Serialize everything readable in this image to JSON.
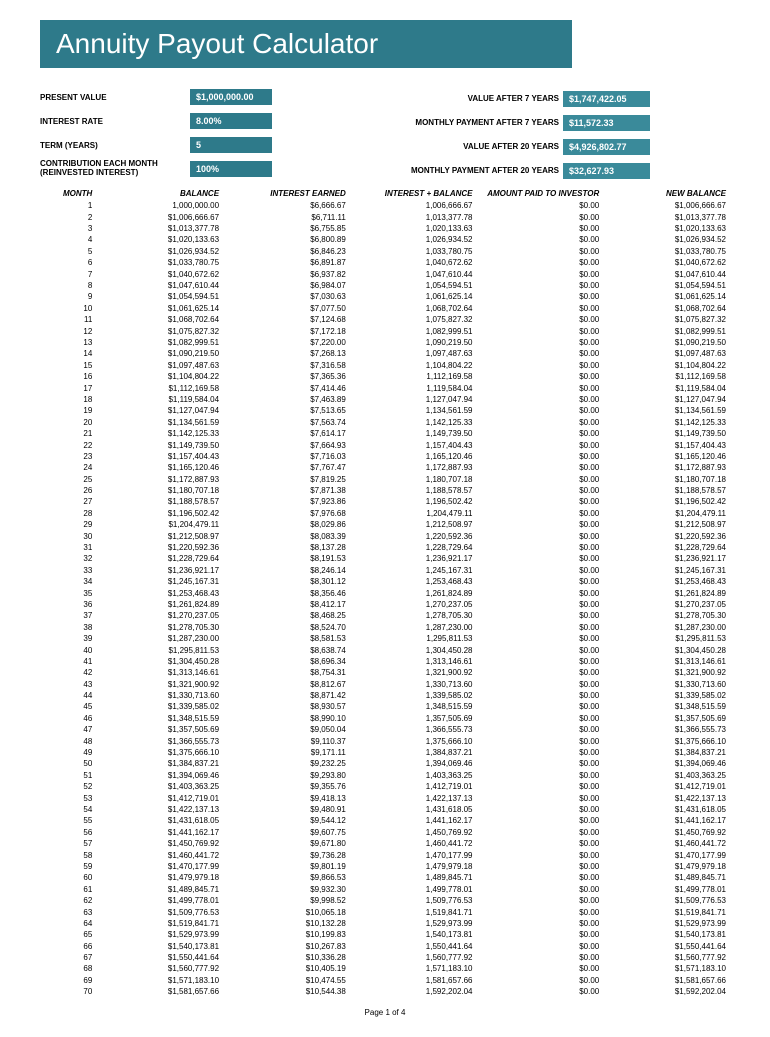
{
  "title": "Annuity Payout Calculator",
  "params": {
    "present_value": {
      "label": "PRESENT VALUE",
      "value": "$1,000,000.00"
    },
    "interest_rate": {
      "label": "INTEREST RATE",
      "value": "8.00%"
    },
    "term": {
      "label": "TERM (YEARS)",
      "value": "5"
    },
    "contribution": {
      "label": "CONTRIBUTION EACH MONTH (REINVESTED INTEREST)",
      "value": "100%"
    }
  },
  "results": {
    "value_7": {
      "label": "VALUE AFTER 7 YEARS",
      "value": "$1,747,422.05"
    },
    "monthly_7": {
      "label": "MONTHLY PAYMENT AFTER 7 YEARS",
      "value": "$11,572.33"
    },
    "value_20": {
      "label": "VALUE AFTER 20 YEARS",
      "value": "$4,926,802.77"
    },
    "monthly_20": {
      "label": "MONTHLY PAYMENT AFTER 20 YEARS",
      "value": "$32,627.93"
    }
  },
  "table": {
    "headers": [
      "MONTH",
      "BALANCE",
      "INTEREST EARNED",
      "INTEREST + BALANCE",
      "AMOUNT PAID TO INVESTOR",
      "NEW BALANCE"
    ],
    "rows": [
      [
        "1",
        "1,000,000.00",
        "$6,666.67",
        "1,006,666.67",
        "$0.00",
        "$1,006,666.67"
      ],
      [
        "2",
        "$1,006,666.67",
        "$6,711.11",
        "1,013,377.78",
        "$0.00",
        "$1,013,377.78"
      ],
      [
        "3",
        "$1,013,377.78",
        "$6,755.85",
        "1,020,133.63",
        "$0.00",
        "$1,020,133.63"
      ],
      [
        "4",
        "$1,020,133.63",
        "$6,800.89",
        "1,026,934.52",
        "$0.00",
        "$1,026,934.52"
      ],
      [
        "5",
        "$1,026,934.52",
        "$6,846.23",
        "1,033,780.75",
        "$0.00",
        "$1,033,780.75"
      ],
      [
        "6",
        "$1,033,780.75",
        "$6,891.87",
        "1,040,672.62",
        "$0.00",
        "$1,040,672.62"
      ],
      [
        "7",
        "$1,040,672.62",
        "$6,937.82",
        "1,047,610.44",
        "$0.00",
        "$1,047,610.44"
      ],
      [
        "8",
        "$1,047,610.44",
        "$6,984.07",
        "1,054,594.51",
        "$0.00",
        "$1,054,594.51"
      ],
      [
        "9",
        "$1,054,594.51",
        "$7,030.63",
        "1,061,625.14",
        "$0.00",
        "$1,061,625.14"
      ],
      [
        "10",
        "$1,061,625.14",
        "$7,077.50",
        "1,068,702.64",
        "$0.00",
        "$1,068,702.64"
      ],
      [
        "11",
        "$1,068,702.64",
        "$7,124.68",
        "1,075,827.32",
        "$0.00",
        "$1,075,827.32"
      ],
      [
        "12",
        "$1,075,827.32",
        "$7,172.18",
        "1,082,999.51",
        "$0.00",
        "$1,082,999.51"
      ],
      [
        "13",
        "$1,082,999.51",
        "$7,220.00",
        "1,090,219.50",
        "$0.00",
        "$1,090,219.50"
      ],
      [
        "14",
        "$1,090,219.50",
        "$7,268.13",
        "1,097,487.63",
        "$0.00",
        "$1,097,487.63"
      ],
      [
        "15",
        "$1,097,487.63",
        "$7,316.58",
        "1,104,804.22",
        "$0.00",
        "$1,104,804.22"
      ],
      [
        "16",
        "$1,104,804.22",
        "$7,365.36",
        "1,112,169.58",
        "$0.00",
        "$1,112,169.58"
      ],
      [
        "17",
        "$1,112,169.58",
        "$7,414.46",
        "1,119,584.04",
        "$0.00",
        "$1,119,584.04"
      ],
      [
        "18",
        "$1,119,584.04",
        "$7,463.89",
        "1,127,047.94",
        "$0.00",
        "$1,127,047.94"
      ],
      [
        "19",
        "$1,127,047.94",
        "$7,513.65",
        "1,134,561.59",
        "$0.00",
        "$1,134,561.59"
      ],
      [
        "20",
        "$1,134,561.59",
        "$7,563.74",
        "1,142,125.33",
        "$0.00",
        "$1,142,125.33"
      ],
      [
        "21",
        "$1,142,125.33",
        "$7,614.17",
        "1,149,739.50",
        "$0.00",
        "$1,149,739.50"
      ],
      [
        "22",
        "$1,149,739.50",
        "$7,664.93",
        "1,157,404.43",
        "$0.00",
        "$1,157,404.43"
      ],
      [
        "23",
        "$1,157,404.43",
        "$7,716.03",
        "1,165,120.46",
        "$0.00",
        "$1,165,120.46"
      ],
      [
        "24",
        "$1,165,120.46",
        "$7,767.47",
        "1,172,887.93",
        "$0.00",
        "$1,172,887.93"
      ],
      [
        "25",
        "$1,172,887.93",
        "$7,819.25",
        "1,180,707.18",
        "$0.00",
        "$1,180,707.18"
      ],
      [
        "26",
        "$1,180,707.18",
        "$7,871.38",
        "1,188,578.57",
        "$0.00",
        "$1,188,578.57"
      ],
      [
        "27",
        "$1,188,578.57",
        "$7,923.86",
        "1,196,502.42",
        "$0.00",
        "$1,196,502.42"
      ],
      [
        "28",
        "$1,196,502.42",
        "$7,976.68",
        "1,204,479.11",
        "$0.00",
        "$1,204,479.11"
      ],
      [
        "29",
        "$1,204,479.11",
        "$8,029.86",
        "1,212,508.97",
        "$0.00",
        "$1,212,508.97"
      ],
      [
        "30",
        "$1,212,508.97",
        "$8,083.39",
        "1,220,592.36",
        "$0.00",
        "$1,220,592.36"
      ],
      [
        "31",
        "$1,220,592.36",
        "$8,137.28",
        "1,228,729.64",
        "$0.00",
        "$1,228,729.64"
      ],
      [
        "32",
        "$1,228,729.64",
        "$8,191.53",
        "1,236,921.17",
        "$0.00",
        "$1,236,921.17"
      ],
      [
        "33",
        "$1,236,921.17",
        "$8,246.14",
        "1,245,167.31",
        "$0.00",
        "$1,245,167.31"
      ],
      [
        "34",
        "$1,245,167.31",
        "$8,301.12",
        "1,253,468.43",
        "$0.00",
        "$1,253,468.43"
      ],
      [
        "35",
        "$1,253,468.43",
        "$8,356.46",
        "1,261,824.89",
        "$0.00",
        "$1,261,824.89"
      ],
      [
        "36",
        "$1,261,824.89",
        "$8,412.17",
        "1,270,237.05",
        "$0.00",
        "$1,270,237.05"
      ],
      [
        "37",
        "$1,270,237.05",
        "$8,468.25",
        "1,278,705.30",
        "$0.00",
        "$1,278,705.30"
      ],
      [
        "38",
        "$1,278,705.30",
        "$8,524.70",
        "1,287,230.00",
        "$0.00",
        "$1,287,230.00"
      ],
      [
        "39",
        "$1,287,230.00",
        "$8,581.53",
        "1,295,811.53",
        "$0.00",
        "$1,295,811.53"
      ],
      [
        "40",
        "$1,295,811.53",
        "$8,638.74",
        "1,304,450.28",
        "$0.00",
        "$1,304,450.28"
      ],
      [
        "41",
        "$1,304,450.28",
        "$8,696.34",
        "1,313,146.61",
        "$0.00",
        "$1,313,146.61"
      ],
      [
        "42",
        "$1,313,146.61",
        "$8,754.31",
        "1,321,900.92",
        "$0.00",
        "$1,321,900.92"
      ],
      [
        "43",
        "$1,321,900.92",
        "$8,812.67",
        "1,330,713.60",
        "$0.00",
        "$1,330,713.60"
      ],
      [
        "44",
        "$1,330,713.60",
        "$8,871.42",
        "1,339,585.02",
        "$0.00",
        "$1,339,585.02"
      ],
      [
        "45",
        "$1,339,585.02",
        "$8,930.57",
        "1,348,515.59",
        "$0.00",
        "$1,348,515.59"
      ],
      [
        "46",
        "$1,348,515.59",
        "$8,990.10",
        "1,357,505.69",
        "$0.00",
        "$1,357,505.69"
      ],
      [
        "47",
        "$1,357,505.69",
        "$9,050.04",
        "1,366,555.73",
        "$0.00",
        "$1,366,555.73"
      ],
      [
        "48",
        "$1,366,555.73",
        "$9,110.37",
        "1,375,666.10",
        "$0.00",
        "$1,375,666.10"
      ],
      [
        "49",
        "$1,375,666.10",
        "$9,171.11",
        "1,384,837.21",
        "$0.00",
        "$1,384,837.21"
      ],
      [
        "50",
        "$1,384,837.21",
        "$9,232.25",
        "1,394,069.46",
        "$0.00",
        "$1,394,069.46"
      ],
      [
        "51",
        "$1,394,069.46",
        "$9,293.80",
        "1,403,363.25",
        "$0.00",
        "$1,403,363.25"
      ],
      [
        "52",
        "$1,403,363.25",
        "$9,355.76",
        "1,412,719.01",
        "$0.00",
        "$1,412,719.01"
      ],
      [
        "53",
        "$1,412,719.01",
        "$9,418.13",
        "1,422,137.13",
        "$0.00",
        "$1,422,137.13"
      ],
      [
        "54",
        "$1,422,137.13",
        "$9,480.91",
        "1,431,618.05",
        "$0.00",
        "$1,431,618.05"
      ],
      [
        "55",
        "$1,431,618.05",
        "$9,544.12",
        "1,441,162.17",
        "$0.00",
        "$1,441,162.17"
      ],
      [
        "56",
        "$1,441,162.17",
        "$9,607.75",
        "1,450,769.92",
        "$0.00",
        "$1,450,769.92"
      ],
      [
        "57",
        "$1,450,769.92",
        "$9,671.80",
        "1,460,441.72",
        "$0.00",
        "$1,460,441.72"
      ],
      [
        "58",
        "$1,460,441.72",
        "$9,736.28",
        "1,470,177.99",
        "$0.00",
        "$1,470,177.99"
      ],
      [
        "59",
        "$1,470,177.99",
        "$9,801.19",
        "1,479,979.18",
        "$0.00",
        "$1,479,979.18"
      ],
      [
        "60",
        "$1,479,979.18",
        "$9,866.53",
        "1,489,845.71",
        "$0.00",
        "$1,489,845.71"
      ],
      [
        "61",
        "$1,489,845.71",
        "$9,932.30",
        "1,499,778.01",
        "$0.00",
        "$1,499,778.01"
      ],
      [
        "62",
        "$1,499,778.01",
        "$9,998.52",
        "1,509,776.53",
        "$0.00",
        "$1,509,776.53"
      ],
      [
        "63",
        "$1,509,776.53",
        "$10,065.18",
        "1,519,841.71",
        "$0.00",
        "$1,519,841.71"
      ],
      [
        "64",
        "$1,519,841.71",
        "$10,132.28",
        "1,529,973.99",
        "$0.00",
        "$1,529,973.99"
      ],
      [
        "65",
        "$1,529,973.99",
        "$10,199.83",
        "1,540,173.81",
        "$0.00",
        "$1,540,173.81"
      ],
      [
        "66",
        "$1,540,173.81",
        "$10,267.83",
        "1,550,441.64",
        "$0.00",
        "$1,550,441.64"
      ],
      [
        "67",
        "$1,550,441.64",
        "$10,336.28",
        "1,560,777.92",
        "$0.00",
        "$1,560,777.92"
      ],
      [
        "68",
        "$1,560,777.92",
        "$10,405.19",
        "1,571,183.10",
        "$0.00",
        "$1,571,183.10"
      ],
      [
        "69",
        "$1,571,183.10",
        "$10,474.55",
        "1,581,657.66",
        "$0.00",
        "$1,581,657.66"
      ],
      [
        "70",
        "$1,581,657.66",
        "$10,544.38",
        "1,592,202.04",
        "$0.00",
        "$1,592,202.04"
      ]
    ]
  },
  "footer": "Page 1 of 4"
}
